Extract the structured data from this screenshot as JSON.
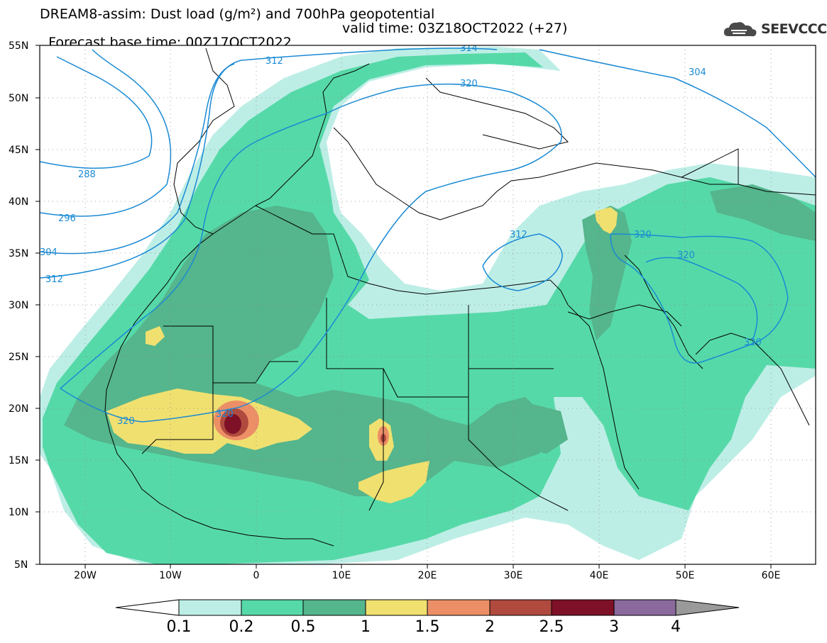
{
  "header": {
    "line1": "DREAM8-assim: Dust load (g/m²) and 700hPa geopotential",
    "base_time": "Forecast base time: 00Z17OCT2022",
    "valid_time": "valid time: 03Z18OCT2022 (+27)"
  },
  "logo": {
    "icon": "cloud-icon",
    "text": "SEEVCCC"
  },
  "map": {
    "lat_labels": [
      "55N",
      "50N",
      "45N",
      "40N",
      "35N",
      "30N",
      "25N",
      "20N",
      "15N",
      "10N",
      "5N"
    ],
    "lon_labels": [
      "20W",
      "10W",
      "0",
      "10E",
      "20E",
      "30E",
      "40E",
      "50E",
      "60E"
    ],
    "contour_labels": [
      "312",
      "314",
      "320",
      "304",
      "288",
      "296",
      "304",
      "312",
      "320",
      "320",
      "312",
      "320",
      "320",
      "320"
    ],
    "contour_color": "#1a8ad4"
  },
  "colorbar": {
    "labels": [
      "0.1",
      "0.2",
      "0.5",
      "1",
      "1.5",
      "2",
      "2.5",
      "3",
      "4"
    ],
    "colors": [
      "#ffffff",
      "#bdeee6",
      "#56d9a8",
      "#55b58c",
      "#f0e070",
      "#ec8f66",
      "#b04a3e",
      "#7e1127",
      "#8a6a9c",
      "#9a9a9a"
    ]
  }
}
